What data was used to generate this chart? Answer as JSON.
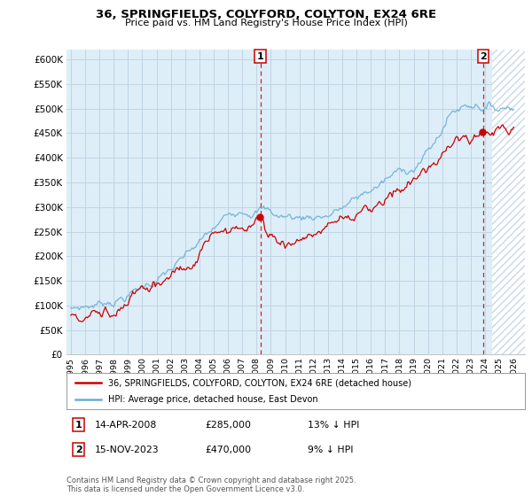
{
  "title": "36, SPRINGFIELDS, COLYFORD, COLYTON, EX24 6RE",
  "subtitle": "Price paid vs. HM Land Registry's House Price Index (HPI)",
  "hpi_color": "#6baed6",
  "hpi_fill_color": "#ddeef8",
  "price_color": "#cc0000",
  "vline_color": "#cc0000",
  "background_color": "#ffffff",
  "grid_color": "#c8d8e8",
  "hatch_color": "#c8d8e8",
  "ylim": [
    0,
    620000
  ],
  "yticks": [
    0,
    50000,
    100000,
    150000,
    200000,
    250000,
    300000,
    350000,
    400000,
    450000,
    500000,
    550000,
    600000
  ],
  "ytick_labels": [
    "£0",
    "£50K",
    "£100K",
    "£150K",
    "£200K",
    "£250K",
    "£300K",
    "£350K",
    "£400K",
    "£450K",
    "£500K",
    "£550K",
    "£600K"
  ],
  "xlim_left": 1994.7,
  "xlim_right": 2026.8,
  "hatch_start": 2024.5,
  "sale1_year": 2008.28,
  "sale1_price": 285000,
  "sale1_price_label": "£285,000",
  "sale1_date_label": "14-APR-2008",
  "sale1_hpi_diff": "13% ↓ HPI",
  "sale2_year": 2023.87,
  "sale2_price": 470000,
  "sale2_price_label": "£470,000",
  "sale2_date_label": "15-NOV-2023",
  "sale2_hpi_diff": "9% ↓ HPI",
  "legend_label1": "36, SPRINGFIELDS, COLYFORD, COLYTON, EX24 6RE (detached house)",
  "legend_label2": "HPI: Average price, detached house, East Devon",
  "footnote": "Contains HM Land Registry data © Crown copyright and database right 2025.\nThis data is licensed under the Open Government Licence v3.0.",
  "marker1_label": "1",
  "marker2_label": "2"
}
